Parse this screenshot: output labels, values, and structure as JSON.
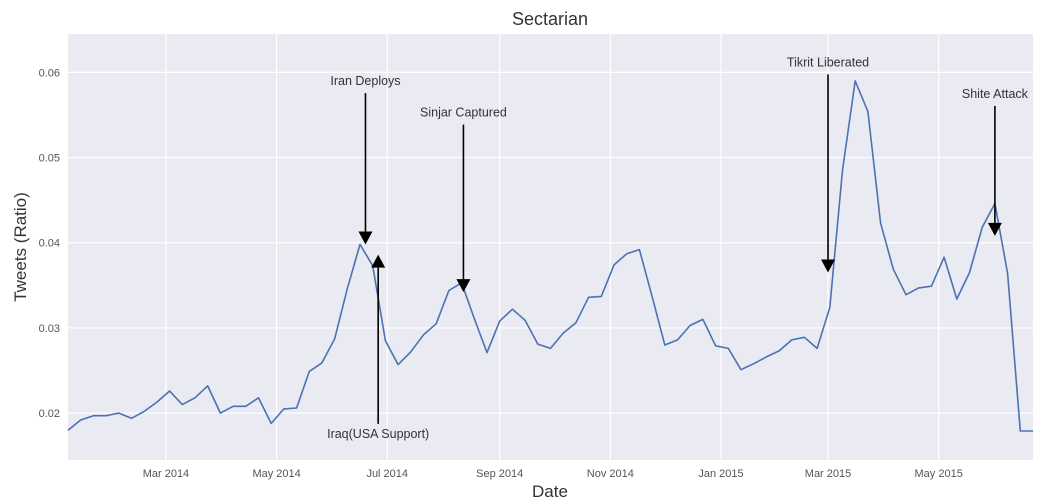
{
  "chart_data": {
    "type": "line",
    "title": "Sectarian",
    "xlabel": "Date",
    "ylabel": "Tweets (Ratio)",
    "xlim": [
      "2014-01-06",
      "2015-06-22"
    ],
    "ylim": [
      0.0145,
      0.0645
    ],
    "grid": true,
    "colors": {
      "line": "#4c72b0",
      "plot_bg": "#eaeaf2",
      "grid": "#ffffff",
      "arrow": "#000000"
    },
    "x_ticks": [
      {
        "date": "2014-03-01",
        "label": "Mar 2014"
      },
      {
        "date": "2014-05-01",
        "label": "May 2014"
      },
      {
        "date": "2014-07-01",
        "label": "Jul 2014"
      },
      {
        "date": "2014-09-01",
        "label": "Sep 2014"
      },
      {
        "date": "2014-11-01",
        "label": "Nov 2014"
      },
      {
        "date": "2015-01-01",
        "label": "Jan 2015"
      },
      {
        "date": "2015-03-01",
        "label": "Mar 2015"
      },
      {
        "date": "2015-05-01",
        "label": "May 2015"
      }
    ],
    "y_ticks": [
      {
        "value": 0.02,
        "label": "0.02"
      },
      {
        "value": 0.03,
        "label": "0.03"
      },
      {
        "value": 0.04,
        "label": "0.04"
      },
      {
        "value": 0.05,
        "label": "0.05"
      },
      {
        "value": 0.06,
        "label": "0.06"
      }
    ],
    "series": [
      {
        "x": [
          "2014-01-06",
          "2014-01-13",
          "2014-01-20",
          "2014-01-27",
          "2014-02-03",
          "2014-02-10",
          "2014-02-17",
          "2014-02-24",
          "2014-03-03",
          "2014-03-10",
          "2014-03-17",
          "2014-03-24",
          "2014-03-31",
          "2014-04-07",
          "2014-04-14",
          "2014-04-21",
          "2014-04-28",
          "2014-05-05",
          "2014-05-12",
          "2014-05-19",
          "2014-05-26",
          "2014-06-02",
          "2014-06-09",
          "2014-06-16",
          "2014-06-23",
          "2014-06-30",
          "2014-07-07",
          "2014-07-14",
          "2014-07-21",
          "2014-07-28",
          "2014-08-04",
          "2014-08-11",
          "2014-08-18",
          "2014-08-25",
          "2014-09-01",
          "2014-09-08",
          "2014-09-15",
          "2014-09-22",
          "2014-09-29",
          "2014-10-06",
          "2014-10-13",
          "2014-10-20",
          "2014-10-27",
          "2014-11-03",
          "2014-11-10",
          "2014-11-17",
          "2014-11-24",
          "2014-12-01",
          "2014-12-08",
          "2014-12-15",
          "2014-12-22",
          "2014-12-29",
          "2015-01-05",
          "2015-01-12",
          "2015-01-19",
          "2015-01-26",
          "2015-02-02",
          "2015-02-09",
          "2015-02-16",
          "2015-02-23",
          "2015-03-02",
          "2015-03-09",
          "2015-03-16",
          "2015-03-23",
          "2015-03-30",
          "2015-04-06",
          "2015-04-13",
          "2015-04-20",
          "2015-04-27",
          "2015-05-04",
          "2015-05-11",
          "2015-05-18",
          "2015-05-25",
          "2015-06-01",
          "2015-06-08",
          "2015-06-15",
          "2015-06-22"
        ],
        "values": [
          0.018,
          0.0192,
          0.0197,
          0.0197,
          0.02,
          0.0194,
          0.0202,
          0.0213,
          0.0226,
          0.021,
          0.0218,
          0.0232,
          0.02,
          0.0208,
          0.0208,
          0.0218,
          0.0188,
          0.0205,
          0.0206,
          0.0249,
          0.0259,
          0.0287,
          0.0346,
          0.0398,
          0.0373,
          0.0285,
          0.0257,
          0.0272,
          0.0292,
          0.0305,
          0.0344,
          0.0353,
          0.0311,
          0.0271,
          0.0308,
          0.0322,
          0.0309,
          0.0281,
          0.0276,
          0.0294,
          0.0306,
          0.0336,
          0.0337,
          0.0374,
          0.0387,
          0.0392,
          0.0337,
          0.028,
          0.0286,
          0.0303,
          0.031,
          0.0279,
          0.0276,
          0.0251,
          0.0258,
          0.0266,
          0.0273,
          0.0286,
          0.0289,
          0.0276,
          0.0324,
          0.0485,
          0.059,
          0.0554,
          0.0423,
          0.0369,
          0.0339,
          0.0347,
          0.0349,
          0.0383,
          0.0334,
          0.0365,
          0.0418,
          0.0446,
          0.0364,
          0.0179,
          0.0179
        ]
      }
    ],
    "annotations": [
      {
        "text": "Iran Deploys",
        "x": "2014-06-19",
        "y": 0.0398,
        "text_y": 0.0585,
        "text_x_offset": 0,
        "direction": "down"
      },
      {
        "text": "Iraq(USA Support)",
        "x": "2014-06-26",
        "y": 0.0386,
        "text_y": 0.0171,
        "text_x_offset": 0,
        "direction": "up"
      },
      {
        "text": "Sinjar Captured",
        "x": "2014-08-12",
        "y": 0.0342,
        "text_y": 0.0548,
        "text_x_offset": 0,
        "direction": "down"
      },
      {
        "text": "Tikrit Liberated",
        "x": "2015-03-01",
        "y": 0.0365,
        "text_y": 0.0607,
        "text_x_offset": 0,
        "direction": "down"
      },
      {
        "text": "Shite Attack",
        "x": "2015-06-01",
        "y": 0.0408,
        "text_y": 0.057,
        "text_x_offset": 0,
        "direction": "down"
      }
    ]
  }
}
